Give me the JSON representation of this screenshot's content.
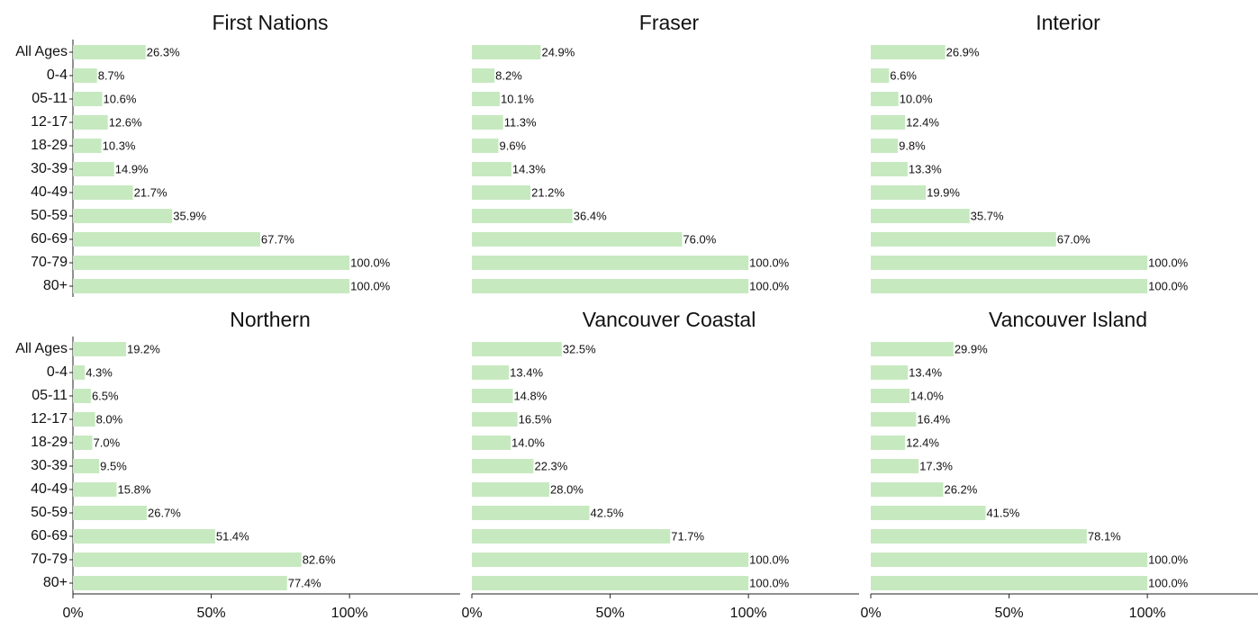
{
  "chart_data": [
    {
      "type": "bar",
      "title": "First Nations",
      "color": "#c7e9c0",
      "categories": [
        "All Ages",
        "0-4",
        "05-11",
        "12-17",
        "18-29",
        "30-39",
        "40-49",
        "50-59",
        "60-69",
        "70-79",
        "80+"
      ],
      "values": [
        26.3,
        8.7,
        10.6,
        12.6,
        10.3,
        14.9,
        21.7,
        35.9,
        67.7,
        100.0,
        100.0
      ],
      "value_labels": [
        "26.3%",
        "8.7%",
        "10.6%",
        "12.6%",
        "10.3%",
        "14.9%",
        "21.7%",
        "35.9%",
        "67.7%",
        "100.0%",
        "100.0%"
      ],
      "xlim": [
        0,
        140
      ]
    },
    {
      "type": "bar",
      "title": "Fraser",
      "color": "#c7e9c0",
      "values": [
        24.9,
        8.2,
        10.1,
        11.3,
        9.6,
        14.3,
        21.2,
        36.4,
        76.0,
        100.0,
        100.0
      ],
      "value_labels": [
        "24.9%",
        "8.2%",
        "10.1%",
        "11.3%",
        "9.6%",
        "14.3%",
        "21.2%",
        "36.4%",
        "76.0%",
        "100.0%",
        "100.0%"
      ],
      "xlim": [
        0,
        140
      ]
    },
    {
      "type": "bar",
      "title": "Interior",
      "color": "#c7e9c0",
      "values": [
        26.9,
        6.6,
        10.0,
        12.4,
        9.8,
        13.3,
        19.9,
        35.7,
        67.0,
        100.0,
        100.0
      ],
      "value_labels": [
        "26.9%",
        "6.6%",
        "10.0%",
        "12.4%",
        "9.8%",
        "13.3%",
        "19.9%",
        "35.7%",
        "67.0%",
        "100.0%",
        "100.0%"
      ],
      "xlim": [
        0,
        140
      ]
    },
    {
      "type": "bar",
      "title": "Northern",
      "color": "#c7e9c0",
      "categories": [
        "All Ages",
        "0-4",
        "05-11",
        "12-17",
        "18-29",
        "30-39",
        "40-49",
        "50-59",
        "60-69",
        "70-79",
        "80+"
      ],
      "values": [
        19.2,
        4.3,
        6.5,
        8.0,
        7.0,
        9.5,
        15.8,
        26.7,
        51.4,
        82.6,
        77.4
      ],
      "value_labels": [
        "19.2%",
        "4.3%",
        "6.5%",
        "8.0%",
        "7.0%",
        "9.5%",
        "15.8%",
        "26.7%",
        "51.4%",
        "82.6%",
        "77.4%"
      ],
      "xlim": [
        0,
        140
      ],
      "xticks": [
        {
          "value": 0,
          "label": "0%"
        },
        {
          "value": 50,
          "label": "50%"
        },
        {
          "value": 100,
          "label": "100%"
        }
      ]
    },
    {
      "type": "bar",
      "title": "Vancouver Coastal",
      "color": "#c7e9c0",
      "values": [
        32.5,
        13.4,
        14.8,
        16.5,
        14.0,
        22.3,
        28.0,
        42.5,
        71.7,
        100.0,
        100.0
      ],
      "value_labels": [
        "32.5%",
        "13.4%",
        "14.8%",
        "16.5%",
        "14.0%",
        "22.3%",
        "28.0%",
        "42.5%",
        "71.7%",
        "100.0%",
        "100.0%"
      ],
      "xlim": [
        0,
        140
      ],
      "xticks": [
        {
          "value": 0,
          "label": "0%"
        },
        {
          "value": 50,
          "label": "50%"
        },
        {
          "value": 100,
          "label": "100%"
        }
      ]
    },
    {
      "type": "bar",
      "title": "Vancouver Island",
      "color": "#c7e9c0",
      "values": [
        29.9,
        13.4,
        14.0,
        16.4,
        12.4,
        17.3,
        26.2,
        41.5,
        78.1,
        100.0,
        100.0
      ],
      "value_labels": [
        "29.9%",
        "13.4%",
        "14.0%",
        "16.4%",
        "12.4%",
        "17.3%",
        "26.2%",
        "41.5%",
        "78.1%",
        "100.0%",
        "100.0%"
      ],
      "xlim": [
        0,
        140
      ],
      "xticks": [
        {
          "value": 0,
          "label": "0%"
        },
        {
          "value": 50,
          "label": "50%"
        },
        {
          "value": 100,
          "label": "100%"
        }
      ]
    }
  ]
}
